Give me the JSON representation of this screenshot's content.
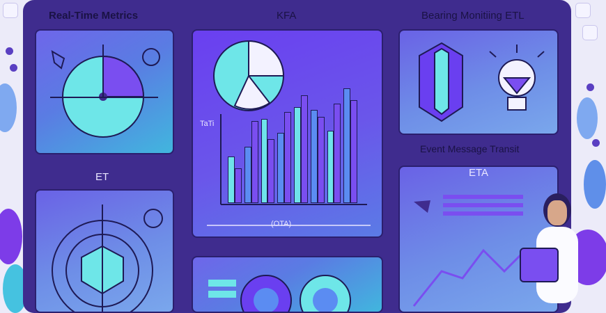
{
  "panels": {
    "realtime_title": "Real-Time Metrics",
    "kfa_title": "KFA",
    "bearing_title": "Bearing Monitiing ETL",
    "event_title": "Event Message Transit",
    "et_title": "ET",
    "eta_title": "ETA"
  },
  "chart": {
    "y_label": "TaTi",
    "x_label": "(OTA)",
    "gauge_marks": "0",
    "bars_a": [
      0.4,
      0.48,
      0.72,
      0.6,
      0.82,
      0.8,
      0.62,
      0.98
    ],
    "bars_b": [
      0.3,
      0.7,
      0.55,
      0.78,
      0.92,
      0.74,
      0.85,
      0.88
    ]
  },
  "colors": {
    "board": "#3f2c8e",
    "accent": "#7a4ef0",
    "cyan": "#6fe3ea"
  }
}
